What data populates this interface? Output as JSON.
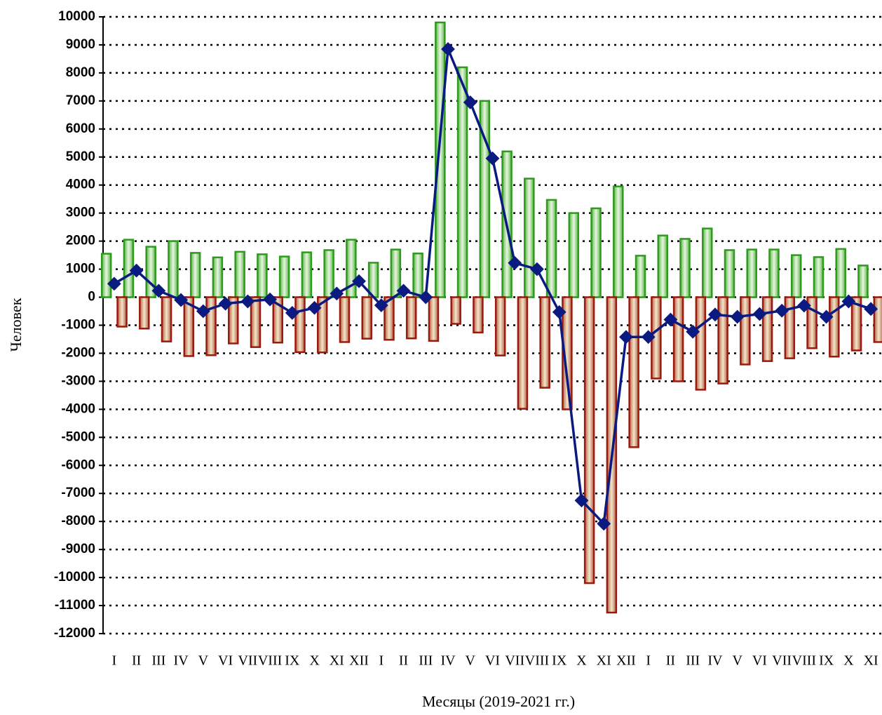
{
  "chart_data": {
    "type": "bar-line",
    "x_label": "Месяцы (2019-2021 гг.)",
    "y_label": "Человек",
    "categories": [
      "I",
      "II",
      "III",
      "IV",
      "V",
      "VI",
      "VII",
      "VIII",
      "IX",
      "X",
      "XI",
      "XII",
      "I",
      "II",
      "III",
      "IV",
      "V",
      "VI",
      "VII",
      "VIII",
      "IX",
      "X",
      "XI",
      "XII",
      "I",
      "II",
      "III",
      "IV",
      "V",
      "VI",
      "VII",
      "VIII",
      "IX",
      "X",
      "XI"
    ],
    "series": [
      {
        "type": "bar",
        "color": "#2e9a1e",
        "values": [
          1550,
          2050,
          1800,
          2000,
          1580,
          1420,
          1620,
          1530,
          1450,
          1600,
          1680,
          2050,
          1230,
          1700,
          1560,
          9800,
          8200,
          7000,
          5200,
          4230,
          3470,
          3000,
          3170,
          3950,
          1480,
          2200,
          2080,
          2450,
          1680,
          1700,
          1700,
          1500,
          1430,
          1720,
          1130
        ]
      },
      {
        "type": "bar",
        "color": "#9a1a0e",
        "values": [
          -1050,
          -1120,
          -1580,
          -2100,
          -2070,
          -1650,
          -1780,
          -1620,
          -1960,
          -1970,
          -1600,
          -1480,
          -1520,
          -1470,
          -1560,
          -950,
          -1260,
          -2080,
          -3980,
          -3230,
          -4000,
          -10200,
          -11250,
          -5350,
          -2900,
          -3000,
          -3300,
          -3080,
          -2400,
          -2280,
          -2180,
          -1820,
          -2120,
          -1900,
          -1600
        ]
      },
      {
        "type": "line",
        "color": "#0a1a80",
        "values": [
          480,
          950,
          230,
          -100,
          -500,
          -230,
          -150,
          -80,
          -560,
          -380,
          130,
          570,
          -290,
          230,
          0,
          8850,
          6950,
          4950,
          1220,
          1000,
          -530,
          -7250,
          -8080,
          -1420,
          -1420,
          -800,
          -1230,
          -620,
          -700,
          -600,
          -480,
          -300,
          -700,
          -150,
          -420
        ]
      }
    ],
    "ylim": [
      -12000,
      10000
    ],
    "yticks": [
      -12000,
      -11000,
      -10000,
      -9000,
      -8000,
      -7000,
      -6000,
      -5000,
      -4000,
      -3000,
      -2000,
      -1000,
      0,
      1000,
      2000,
      3000,
      4000,
      5000,
      6000,
      7000,
      8000,
      9000,
      10000
    ],
    "grid": true
  }
}
